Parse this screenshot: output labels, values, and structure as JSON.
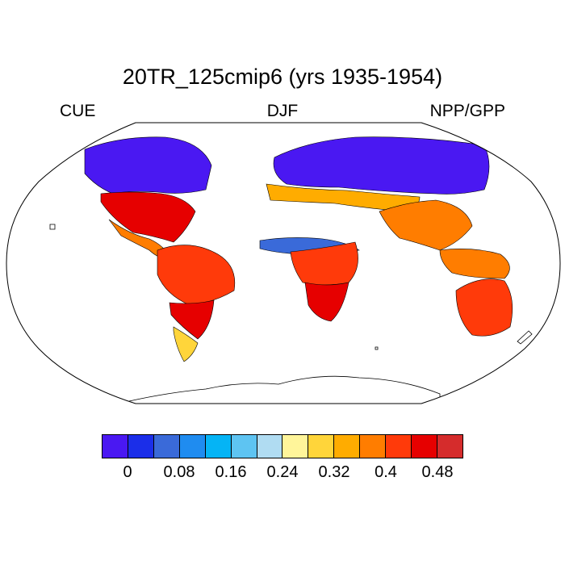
{
  "title": "20TR_125cmip6 (yrs 1935-1954)",
  "left_label": "CUE",
  "center_label": "DJF",
  "right_label": "NPP/GPP",
  "colorbar": {
    "colors": [
      "#4a18f2",
      "#1b2ee9",
      "#3a6ad9",
      "#1f8cf0",
      "#05b4f5",
      "#5ec4f2",
      "#b0dcf2",
      "#fff59a",
      "#ffd53a",
      "#ffac00",
      "#ff7d00",
      "#ff3a0a",
      "#e60000",
      "#d52c2c"
    ],
    "tick_labels": [
      "0",
      "0.08",
      "0.16",
      "0.24",
      "0.32",
      "0.4",
      "0.48"
    ]
  },
  "chart_data": {
    "type": "heatmap",
    "title": "20TR_125cmip6 (yrs 1935-1954)",
    "variable": "NPP/GPP",
    "season": "DJF",
    "projection": "Robinson",
    "scale_min": 0,
    "scale_step": 0.04,
    "scale_max": 0.52,
    "regions": [
      {
        "name": "North America boreal",
        "value": 0.0
      },
      {
        "name": "North America subtropics",
        "value": 0.46
      },
      {
        "name": "Mexico / Central America",
        "value": 0.38
      },
      {
        "name": "Amazon",
        "value": 0.42
      },
      {
        "name": "Southern South America",
        "value": 0.45
      },
      {
        "name": "Patagonia",
        "value": 0.3
      },
      {
        "name": "Eurasia boreal",
        "value": 0.0
      },
      {
        "name": "Mediterranean",
        "value": 0.34
      },
      {
        "name": "Sahel",
        "value": 0.05
      },
      {
        "name": "Central Africa",
        "value": 0.4
      },
      {
        "name": "Southern Africa",
        "value": 0.47
      },
      {
        "name": "India / Southeast Asia",
        "value": 0.38
      },
      {
        "name": "Maritime Continent",
        "value": 0.36
      },
      {
        "name": "Australia",
        "value": 0.42
      }
    ]
  }
}
